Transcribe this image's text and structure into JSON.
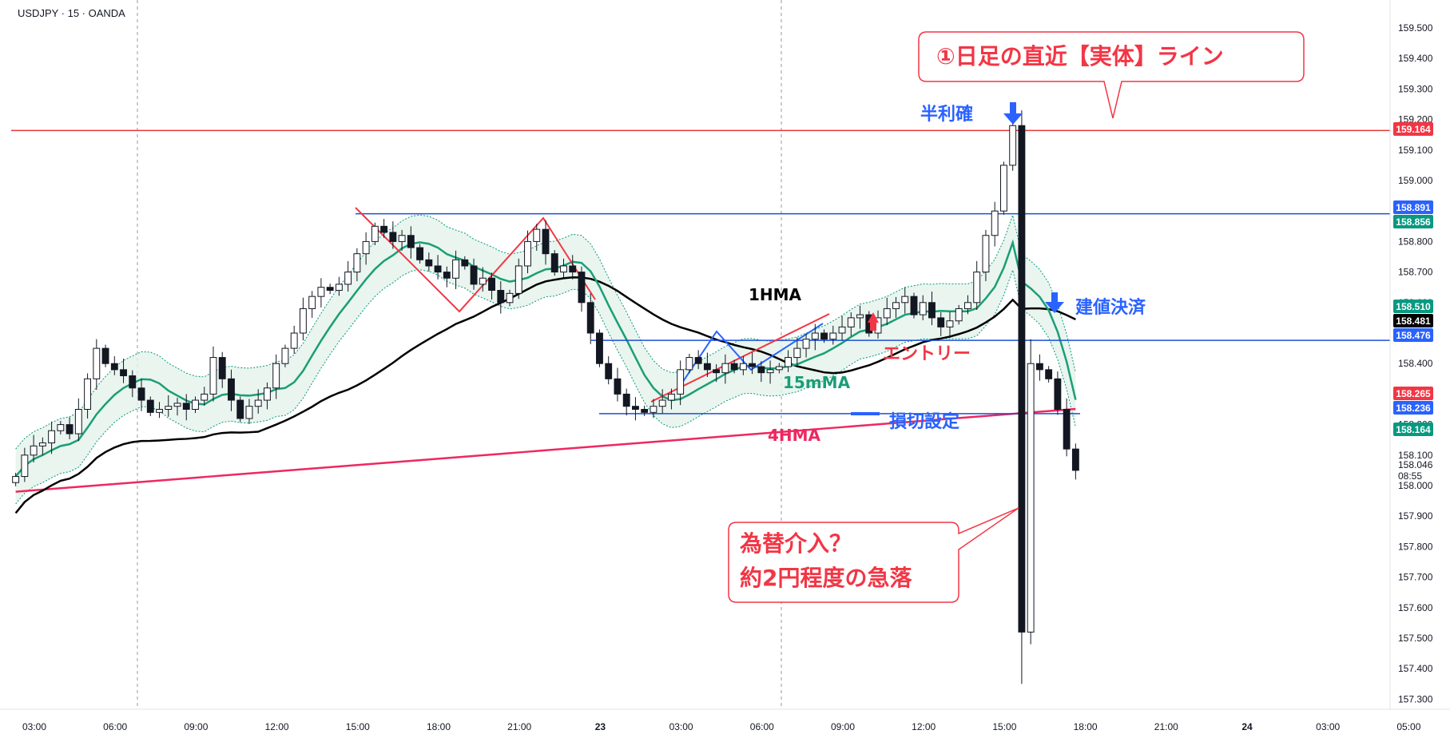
{
  "symbol_line": "USDJPY · 15 · OANDA",
  "chart_data": {
    "type": "candlestick",
    "symbol": "USDJPY",
    "timeframe": "15",
    "source": "OANDA",
    "ylim": [
      157.25,
      159.6
    ],
    "y_ticks": [
      159.5,
      159.4,
      159.3,
      159.2,
      159.1,
      159.0,
      158.9,
      158.8,
      158.7,
      158.6,
      158.5,
      158.4,
      158.3,
      158.2,
      158.1,
      158.0,
      157.9,
      157.8,
      157.7,
      157.6,
      157.5,
      157.4,
      157.3
    ],
    "y_tick_labels": [
      "159.500",
      "159.400",
      "159.300",
      "159.200",
      "159.100",
      "159.000",
      "158.900",
      "158.800",
      "158.700",
      "158.600",
      "158.500",
      "158.400",
      "158.300",
      "158.200",
      "158.100",
      "158.000",
      "157.900",
      "157.800",
      "157.700",
      "157.600",
      "157.500",
      "157.400",
      "157.300"
    ],
    "x_ticks": [
      {
        "label": "03:00",
        "bold": false
      },
      {
        "label": "06:00",
        "bold": false
      },
      {
        "label": "09:00",
        "bold": false
      },
      {
        "label": "12:00",
        "bold": false
      },
      {
        "label": "15:00",
        "bold": false
      },
      {
        "label": "18:00",
        "bold": false
      },
      {
        "label": "21:00",
        "bold": false
      },
      {
        "label": "23",
        "bold": true
      },
      {
        "label": "03:00",
        "bold": false
      },
      {
        "label": "06:00",
        "bold": false
      },
      {
        "label": "09:00",
        "bold": false
      },
      {
        "label": "12:00",
        "bold": false
      },
      {
        "label": "15:00",
        "bold": false
      },
      {
        "label": "18:00",
        "bold": false
      },
      {
        "label": "21:00",
        "bold": false
      },
      {
        "label": "24",
        "bold": true
      },
      {
        "label": "03:00",
        "bold": false
      },
      {
        "label": "05:00",
        "bold": false
      }
    ],
    "candles_close": [
      158.03,
      158.1,
      158.13,
      158.14,
      158.18,
      158.2,
      158.17,
      158.25,
      158.35,
      158.45,
      158.4,
      158.38,
      158.36,
      158.32,
      158.28,
      158.24,
      158.25,
      158.26,
      158.27,
      158.25,
      158.28,
      158.3,
      158.42,
      158.35,
      158.28,
      158.22,
      158.26,
      158.28,
      158.32,
      158.4,
      158.45,
      158.5,
      158.58,
      158.62,
      158.65,
      158.64,
      158.66,
      158.7,
      158.76,
      158.8,
      158.85,
      158.83,
      158.8,
      158.82,
      158.78,
      158.74,
      158.72,
      158.7,
      158.68,
      158.74,
      158.72,
      158.66,
      158.68,
      158.64,
      158.6,
      158.63,
      158.72,
      158.8,
      158.84,
      158.76,
      158.7,
      158.72,
      158.7,
      158.6,
      158.5,
      158.4,
      158.35,
      158.3,
      158.26,
      158.25,
      158.24,
      158.26,
      158.28,
      158.3,
      158.38,
      158.42,
      158.4,
      158.38,
      158.37,
      158.4,
      158.38,
      158.4,
      158.39,
      158.37,
      158.38,
      158.39,
      158.42,
      158.45,
      158.48,
      158.5,
      158.48,
      158.5,
      158.52,
      158.55,
      158.56,
      158.5,
      158.55,
      158.58,
      158.6,
      158.62,
      158.56,
      158.6,
      158.55,
      158.52,
      158.54,
      158.58,
      158.6,
      158.7,
      158.82,
      158.9,
      159.05,
      159.18,
      157.52,
      158.4,
      158.38,
      158.35,
      158.25,
      158.12,
      158.05
    ],
    "moving_averages": [
      {
        "name": "15mMA",
        "color": "#1b9e77"
      },
      {
        "name": "1HMA",
        "color": "#000000"
      },
      {
        "name": "4HMA",
        "color": "#ee2860"
      }
    ],
    "horizontal_lines": [
      {
        "price": 159.164,
        "label": "159.164",
        "color": "#e53935"
      },
      {
        "price": 158.891,
        "label": "158.891",
        "color": "#1e4fd6"
      },
      {
        "price": 158.476,
        "label": "158.476",
        "color": "#1e4fd6"
      },
      {
        "price": 158.236,
        "label": "158.236",
        "color": "#1e4fd6"
      }
    ],
    "price_tags": [
      {
        "label": "159.164",
        "color": "#f23645"
      },
      {
        "label": "158.891",
        "color": "#2962ff"
      },
      {
        "label": "158.856",
        "color": "#089981"
      },
      {
        "label": "158.510",
        "color": "#089981"
      },
      {
        "label": "158.481",
        "color": "#000000"
      },
      {
        "label": "158.476",
        "color": "#2962ff"
      },
      {
        "label": "158.265",
        "color": "#f23645"
      },
      {
        "label": "158.236",
        "color": "#2962ff"
      },
      {
        "label": "158.164",
        "color": "#089981"
      }
    ],
    "last_price": {
      "label": "158.046",
      "countdown": "08:55"
    }
  },
  "annotations": {
    "callout_top": "①日足の直近【実体】ライン",
    "callout_bottom_line1": "為替介入？",
    "callout_bottom_line2": "約2円程度の急落",
    "half_profit": "半利確",
    "breakeven": "建値決済",
    "entry": "エントリー",
    "stop_loss": "損切設定",
    "label_1hma": "1HMA",
    "label_15mma": "15mMA",
    "label_4hma": "4HMA"
  },
  "colors": {
    "red": "#f23645",
    "blue": "#2962ff",
    "green": "#089981",
    "band_fill": "#e3f3ea",
    "ma15": "#1b9e77",
    "ma4h": "#ee2860",
    "ma1h": "#000000"
  }
}
